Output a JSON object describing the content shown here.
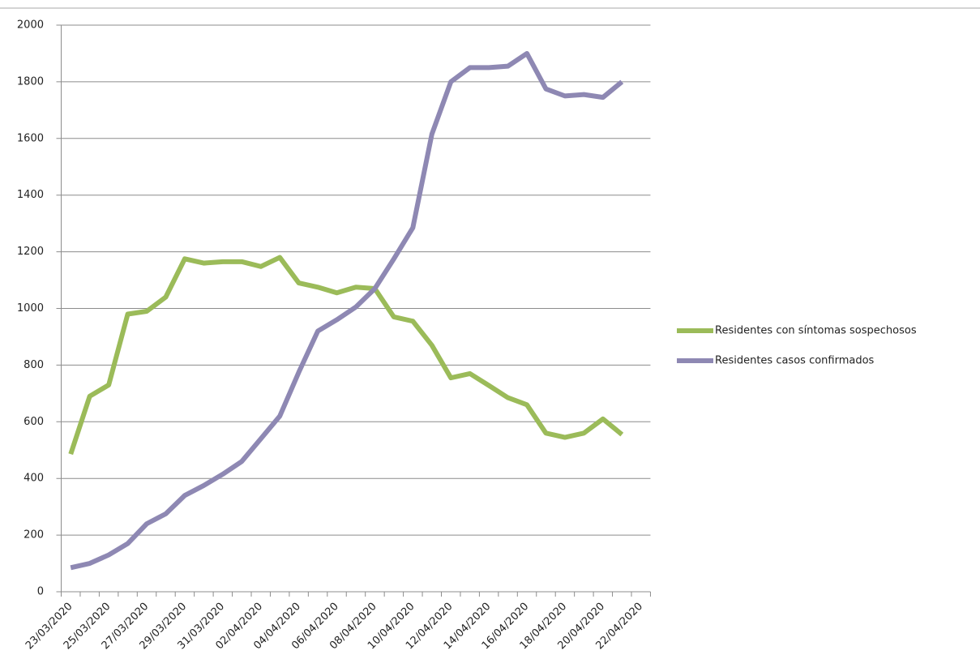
{
  "chart_data": {
    "type": "line",
    "categories": [
      "23/03/2020",
      null,
      "25/03/2020",
      null,
      "27/03/2020",
      null,
      "29/03/2020",
      null,
      "31/03/2020",
      null,
      "02/04/2020",
      null,
      "04/04/2020",
      null,
      "06/04/2020",
      null,
      "08/04/2020",
      null,
      "10/04/2020",
      null,
      "12/04/2020",
      null,
      "14/04/2020",
      null,
      "16/04/2020",
      null,
      "18/04/2020",
      null,
      "20/04/2020",
      null,
      "22/04/2020"
    ],
    "series": [
      {
        "name": "Residentes con síntomas sospechosos",
        "color": "#9bbb59",
        "values": [
          486,
          690,
          730,
          980,
          990,
          1040,
          1175,
          1160,
          1165,
          1165,
          1148,
          1180,
          1090,
          1075,
          1055,
          1075,
          1070,
          970,
          955,
          870,
          755,
          770,
          728,
          685,
          660,
          560,
          545,
          560,
          610,
          555,
          null
        ]
      },
      {
        "name": "Residentes casos confirmados",
        "color": "#8e88b3",
        "values": [
          85,
          100,
          130,
          170,
          240,
          275,
          340,
          375,
          415,
          460,
          540,
          620,
          775,
          920,
          960,
          1005,
          1070,
          1175,
          1285,
          1615,
          1800,
          1850,
          1850,
          1855,
          1900,
          1775,
          1750,
          1755,
          1745,
          1800,
          null
        ]
      }
    ],
    "ylim": [
      0,
      2000
    ],
    "yticks": [
      0,
      200,
      400,
      600,
      800,
      1000,
      1200,
      1400,
      1600,
      1800,
      2000
    ],
    "grid": true,
    "legend": "right"
  }
}
